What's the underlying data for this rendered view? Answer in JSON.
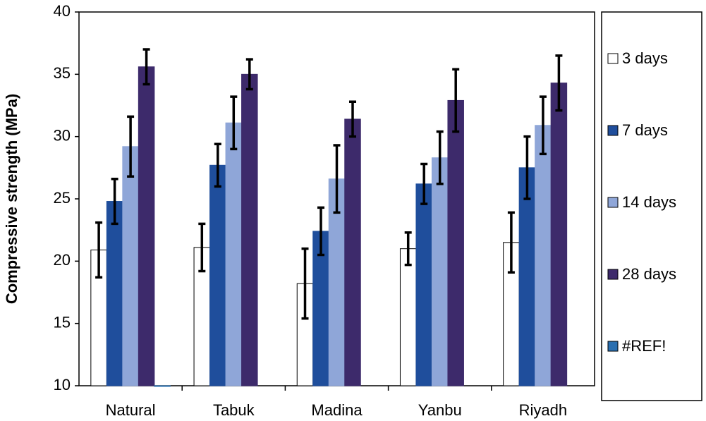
{
  "chart_data": {
    "type": "bar",
    "ylabel": "Compressive strength (MPa)",
    "categories": [
      "Natural",
      "Tabuk",
      "Madina",
      "Yanbu",
      "Riyadh"
    ],
    "series": [
      {
        "name": "3 days",
        "color": "#ffffff",
        "values": [
          20.9,
          21.1,
          18.2,
          21.0,
          21.5
        ],
        "errors": [
          2.2,
          1.9,
          2.8,
          1.3,
          2.4
        ]
      },
      {
        "name": "7 days",
        "color": "#1f4e9c",
        "values": [
          24.8,
          27.7,
          22.4,
          26.2,
          27.5
        ],
        "errors": [
          1.8,
          1.7,
          1.9,
          1.6,
          2.5
        ]
      },
      {
        "name": "14 days",
        "color": "#8fa6d8",
        "values": [
          29.2,
          31.1,
          26.6,
          28.3,
          30.9
        ],
        "errors": [
          2.4,
          2.1,
          2.7,
          2.1,
          2.3
        ]
      },
      {
        "name": "28 days",
        "color": "#3d2a6b",
        "values": [
          35.6,
          35.0,
          31.4,
          32.9,
          34.3
        ],
        "errors": [
          1.4,
          1.2,
          1.4,
          2.5,
          2.2
        ]
      },
      {
        "name": "#REF!",
        "color": "#2a6fb0",
        "values": [
          10,
          null,
          null,
          null,
          null
        ],
        "errors": [
          null,
          null,
          null,
          null,
          null
        ]
      }
    ],
    "ylim": [
      10,
      40
    ],
    "yticks": [
      10,
      15,
      20,
      25,
      30,
      35,
      40
    ],
    "grid": false,
    "legend": "right"
  }
}
